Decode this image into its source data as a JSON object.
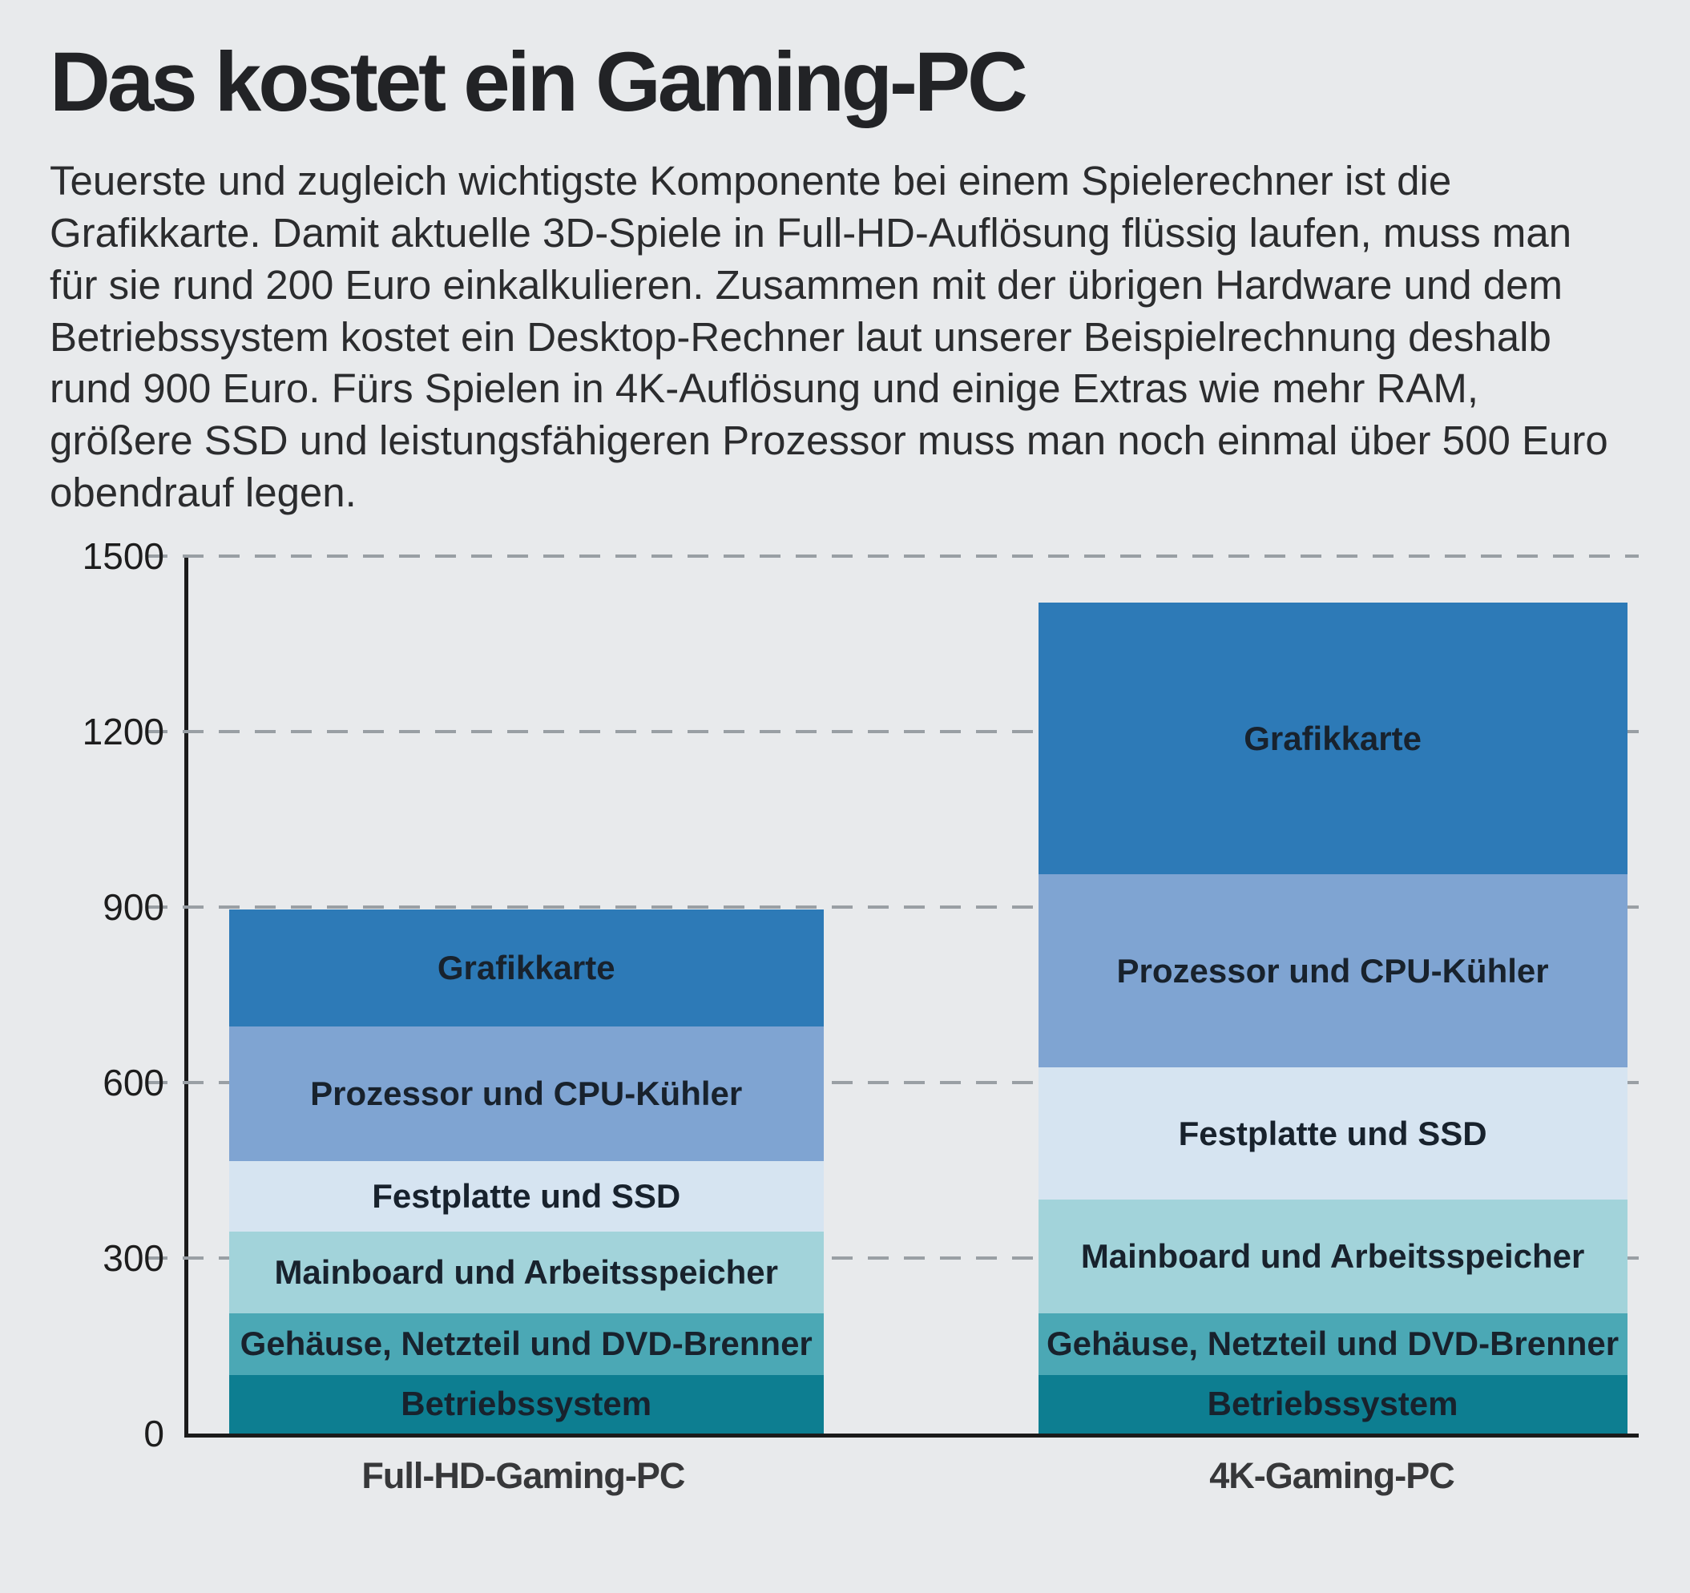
{
  "page": {
    "title": "Das kostet ein Gaming-PC",
    "intro": "Teuerste und zugleich wichtigste Komponente bei einem Spielerechner ist die Grafikkarte. Damit aktuelle 3D-Spiele in Full-HD-Auflösung flüssig laufen, muss man für sie rund 200 Euro einkalkulieren. Zusammen mit der übrigen Hardware und dem Betriebssystem kostet ein Desktop-Rechner laut unserer Beispielrechnung deshalb rund 900 Euro. Fürs Spielen in 4K-Auflösung und einige Extras wie mehr RAM, größere SSD und leistungsfähigeren Prozessor muss man noch einmal über 500 Euro obendrauf legen.",
    "background_color": "#e8eaec"
  },
  "chart_data": {
    "type": "bar",
    "stacked": true,
    "title": "Das kostet ein Gaming-PC",
    "xlabel": "",
    "ylabel": "",
    "ylim": [
      0,
      1500
    ],
    "yticks": [
      0,
      300,
      600,
      900,
      1200,
      1500
    ],
    "grid": "dashed-horizontal",
    "legend": "labels-inside-bars",
    "categories": [
      "Full-HD-Gaming-PC",
      "4K-Gaming-PC"
    ],
    "series": [
      {
        "name": "Betriebssystem",
        "color": "#0d7e91",
        "values": [
          100,
          100
        ]
      },
      {
        "name": "Gehäuse, Netzteil und DVD-Brenner",
        "color": "#4ba8b5",
        "values": [
          105,
          105
        ]
      },
      {
        "name": "Mainboard und Arbeitsspeicher",
        "color": "#a2d3da",
        "values": [
          140,
          195
        ]
      },
      {
        "name": "Festplatte und SSD",
        "color": "#d6e4f1",
        "values": [
          120,
          225
        ]
      },
      {
        "name": "Prozessor und CPU-Kühler",
        "color": "#7fa4d2",
        "values": [
          230,
          330
        ]
      },
      {
        "name": "Grafikkarte",
        "color": "#2d7ab7",
        "values": [
          200,
          465
        ]
      }
    ],
    "totals_approx": [
      895,
      1420
    ],
    "axis_color": "#1b1b1b",
    "gridline_color": "#999fa4"
  }
}
